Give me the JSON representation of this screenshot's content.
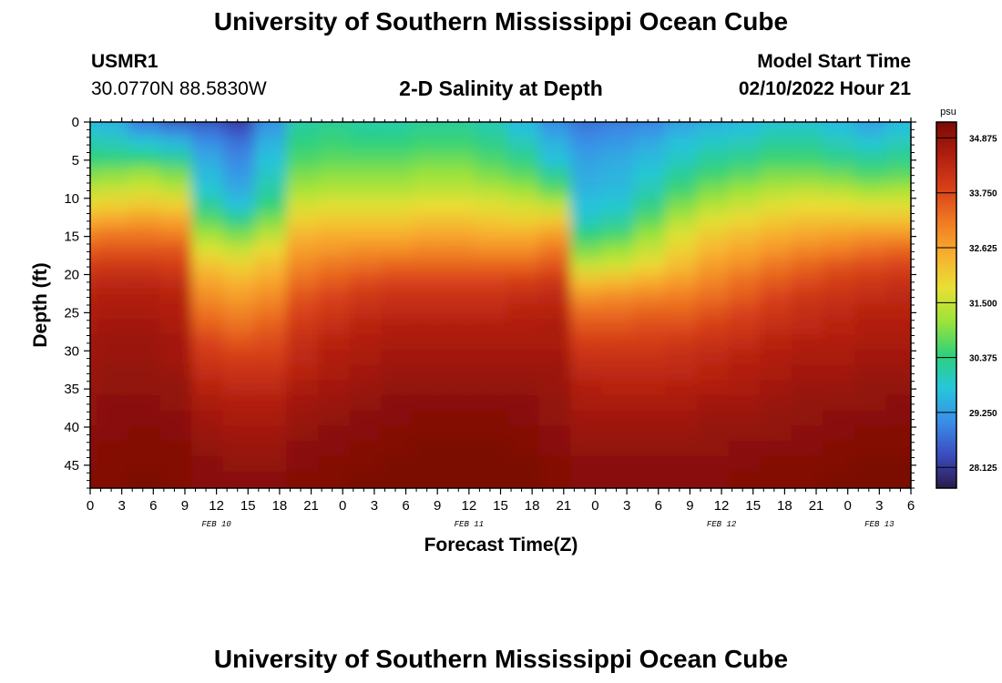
{
  "header": {
    "title": "University of Southern Mississippi Ocean Cube",
    "station_id": "USMR1",
    "station_coords": "30.0770N  88.5830W",
    "start_label": "Model Start Time",
    "start_value": "02/10/2022 Hour 21"
  },
  "footer": {
    "title": "University of Southern Mississippi Ocean Cube"
  },
  "chart_data": {
    "type": "heatmap",
    "title": "2-D Salinity at Depth",
    "xlabel": "Forecast Time(Z)",
    "ylabel": "Depth (ft)",
    "ylim": [
      0,
      48
    ],
    "y_ticks": [
      0,
      5,
      10,
      15,
      20,
      25,
      30,
      35,
      40,
      45
    ],
    "x_range_hours": [
      0,
      78
    ],
    "x_ticks_hours": [
      0,
      3,
      6,
      9,
      12,
      15,
      18,
      21,
      24,
      27,
      30,
      33,
      36,
      39,
      42,
      45,
      48,
      51,
      54,
      57,
      60,
      63,
      66,
      69,
      72,
      75,
      78
    ],
    "x_tick_labels": [
      "0",
      "3",
      "6",
      "9",
      "12",
      "15",
      "18",
      "21",
      "0",
      "3",
      "6",
      "9",
      "12",
      "15",
      "18",
      "21",
      "0",
      "3",
      "6",
      "9",
      "12",
      "15",
      "18",
      "21",
      "0",
      "3",
      "6"
    ],
    "date_labels": [
      {
        "label": "FEB 10",
        "hour": 12
      },
      {
        "label": "FEB 11",
        "hour": 36
      },
      {
        "label": "FEB 12",
        "hour": 60
      },
      {
        "label": "FEB 13",
        "hour": 75
      }
    ],
    "colorbar": {
      "unit": "psu",
      "min": 27.7,
      "max": 35.2,
      "ticks": [
        34.875,
        33.75,
        32.625,
        31.5,
        30.375,
        29.25,
        28.125
      ],
      "tick_labels": [
        "34.875",
        "33.750",
        "32.625",
        "31.500",
        "30.375",
        "29.250",
        "28.125"
      ],
      "colors": [
        "#2a1a4a",
        "#3b4cc0",
        "#3a8ee8",
        "#26c6da",
        "#2ed17a",
        "#9be33a",
        "#e8e035",
        "#f8b030",
        "#f07a22",
        "#d8401a",
        "#b01e0e",
        "#7a0a05"
      ]
    },
    "salinity_grid": {
      "hours": [
        0,
        3,
        6,
        9,
        12,
        15,
        18,
        21,
        24,
        27,
        30,
        33,
        36,
        39,
        42,
        45,
        48,
        51,
        54,
        57,
        60,
        63,
        66,
        69,
        72,
        75,
        78
      ],
      "depths": [
        0,
        2,
        4,
        6,
        8,
        10,
        12,
        14,
        16,
        18,
        20,
        22,
        24,
        26,
        28,
        30,
        32,
        34,
        36,
        38,
        40,
        42,
        44,
        46,
        48
      ],
      "values": [
        [
          29.5,
          29.4,
          28.6,
          28.0,
          28.2,
          28.0,
          29.0,
          30.0,
          30.1,
          30.0,
          30.0,
          30.1,
          30.1,
          29.9,
          29.4,
          28.9,
          28.6,
          28.7,
          28.8,
          29.1,
          29.3,
          29.4,
          29.6,
          29.6,
          29.4,
          29.1,
          29.4
        ],
        [
          29.8,
          29.6,
          29.1,
          28.9,
          28.7,
          28.4,
          29.2,
          30.2,
          30.3,
          30.2,
          30.2,
          30.3,
          30.3,
          30.1,
          29.7,
          29.2,
          28.9,
          29.0,
          29.1,
          29.4,
          29.6,
          29.7,
          29.9,
          29.9,
          29.7,
          29.4,
          29.7
        ],
        [
          30.1,
          30.0,
          29.8,
          29.6,
          29.1,
          28.8,
          29.5,
          30.4,
          30.5,
          30.4,
          30.4,
          30.5,
          30.5,
          30.3,
          30.0,
          29.5,
          29.1,
          29.2,
          29.4,
          29.7,
          29.9,
          30.0,
          30.2,
          30.2,
          30.0,
          29.8,
          30.0
        ],
        [
          30.4,
          30.4,
          30.4,
          30.2,
          29.4,
          29.0,
          29.7,
          30.6,
          30.7,
          30.7,
          30.7,
          30.8,
          30.8,
          30.6,
          30.3,
          29.7,
          29.3,
          29.4,
          29.6,
          29.9,
          30.2,
          30.3,
          30.5,
          30.5,
          30.3,
          30.2,
          30.3
        ],
        [
          30.9,
          31.0,
          31.1,
          30.9,
          29.6,
          29.2,
          29.9,
          30.9,
          31.0,
          31.0,
          31.0,
          31.1,
          31.1,
          30.9,
          30.7,
          30.2,
          29.4,
          29.5,
          29.8,
          30.2,
          30.5,
          30.7,
          30.9,
          30.9,
          30.8,
          30.6,
          30.7
        ],
        [
          31.4,
          31.5,
          31.6,
          31.4,
          29.8,
          29.4,
          30.1,
          31.2,
          31.3,
          31.3,
          31.3,
          31.4,
          31.4,
          31.3,
          31.1,
          30.7,
          29.5,
          29.6,
          30.0,
          30.5,
          30.9,
          31.1,
          31.3,
          31.4,
          31.3,
          31.1,
          31.2
        ],
        [
          31.9,
          32.0,
          32.1,
          32.0,
          30.2,
          29.7,
          30.4,
          31.6,
          31.7,
          31.7,
          31.7,
          31.8,
          31.8,
          31.7,
          31.6,
          31.4,
          29.7,
          29.8,
          30.3,
          30.9,
          31.3,
          31.5,
          31.7,
          31.8,
          31.8,
          31.7,
          31.7
        ],
        [
          32.5,
          32.6,
          32.7,
          32.6,
          30.7,
          30.3,
          30.9,
          32.0,
          32.1,
          32.1,
          32.1,
          32.2,
          32.2,
          32.1,
          32.0,
          32.1,
          29.9,
          30.1,
          30.7,
          31.3,
          31.7,
          31.9,
          32.1,
          32.2,
          32.2,
          32.2,
          32.2
        ],
        [
          33.0,
          33.2,
          33.2,
          33.1,
          31.2,
          30.9,
          31.4,
          32.4,
          32.5,
          32.5,
          32.5,
          32.6,
          32.6,
          32.5,
          32.5,
          32.7,
          30.4,
          30.6,
          31.1,
          31.7,
          32.1,
          32.3,
          32.5,
          32.6,
          32.7,
          32.8,
          32.8
        ],
        [
          33.5,
          33.6,
          33.6,
          33.6,
          31.7,
          31.5,
          31.9,
          32.7,
          32.8,
          32.9,
          32.9,
          33.0,
          33.0,
          32.9,
          32.9,
          33.2,
          30.9,
          31.1,
          31.5,
          32.0,
          32.4,
          32.6,
          32.8,
          33.0,
          33.1,
          33.3,
          33.4
        ],
        [
          33.9,
          34.0,
          34.0,
          33.9,
          32.2,
          32.0,
          32.3,
          33.0,
          33.2,
          33.3,
          33.4,
          33.4,
          33.4,
          33.4,
          33.4,
          33.6,
          31.5,
          31.6,
          31.9,
          32.3,
          32.7,
          32.9,
          33.2,
          33.4,
          33.6,
          33.7,
          33.8
        ],
        [
          34.2,
          34.3,
          34.3,
          34.2,
          32.6,
          32.4,
          32.6,
          33.3,
          33.5,
          33.7,
          33.8,
          33.8,
          33.8,
          33.8,
          33.9,
          34.0,
          32.2,
          32.3,
          32.5,
          32.7,
          33.0,
          33.3,
          33.5,
          33.7,
          33.9,
          34.0,
          34.1
        ],
        [
          34.4,
          34.5,
          34.5,
          34.4,
          32.9,
          32.7,
          32.9,
          33.6,
          33.8,
          34.0,
          34.1,
          34.1,
          34.1,
          34.1,
          34.2,
          34.3,
          32.8,
          32.9,
          33.0,
          33.1,
          33.3,
          33.5,
          33.8,
          34.0,
          34.1,
          34.2,
          34.3
        ],
        [
          34.5,
          34.6,
          34.6,
          34.5,
          33.2,
          33.0,
          33.2,
          33.8,
          34.0,
          34.2,
          34.3,
          34.3,
          34.3,
          34.3,
          34.4,
          34.4,
          33.3,
          33.3,
          33.4,
          33.4,
          33.6,
          33.8,
          34.0,
          34.2,
          34.3,
          34.4,
          34.4
        ],
        [
          34.6,
          34.7,
          34.7,
          34.6,
          33.5,
          33.3,
          33.5,
          34.0,
          34.2,
          34.4,
          34.5,
          34.5,
          34.5,
          34.5,
          34.5,
          34.6,
          33.6,
          33.6,
          33.7,
          33.7,
          33.9,
          34.0,
          34.2,
          34.3,
          34.4,
          34.5,
          34.5
        ],
        [
          34.7,
          34.8,
          34.8,
          34.7,
          33.8,
          33.6,
          33.7,
          34.2,
          34.4,
          34.5,
          34.6,
          34.6,
          34.6,
          34.6,
          34.6,
          34.6,
          33.9,
          33.9,
          33.9,
          34.0,
          34.1,
          34.2,
          34.4,
          34.5,
          34.5,
          34.6,
          34.6
        ],
        [
          34.7,
          34.8,
          34.8,
          34.7,
          34.0,
          33.9,
          33.9,
          34.3,
          34.5,
          34.6,
          34.7,
          34.7,
          34.7,
          34.7,
          34.7,
          34.7,
          34.1,
          34.1,
          34.1,
          34.2,
          34.3,
          34.4,
          34.5,
          34.6,
          34.6,
          34.7,
          34.7
        ],
        [
          34.8,
          34.9,
          34.9,
          34.8,
          34.2,
          34.1,
          34.1,
          34.4,
          34.6,
          34.7,
          34.8,
          34.8,
          34.8,
          34.8,
          34.8,
          34.8,
          34.3,
          34.3,
          34.3,
          34.3,
          34.4,
          34.5,
          34.6,
          34.7,
          34.7,
          34.8,
          34.8
        ],
        [
          34.8,
          34.9,
          34.9,
          34.9,
          34.4,
          34.3,
          34.3,
          34.6,
          34.7,
          34.8,
          34.9,
          34.9,
          34.9,
          34.9,
          34.9,
          34.8,
          34.5,
          34.4,
          34.4,
          34.5,
          34.5,
          34.6,
          34.7,
          34.8,
          34.8,
          34.9,
          34.9
        ],
        [
          34.9,
          35.0,
          35.0,
          34.9,
          34.6,
          34.5,
          34.5,
          34.7,
          34.8,
          34.9,
          35.0,
          35.0,
          35.0,
          35.0,
          35.0,
          34.9,
          34.6,
          34.6,
          34.6,
          34.6,
          34.7,
          34.7,
          34.8,
          34.9,
          34.9,
          34.9,
          35.0
        ],
        [
          34.9,
          35.0,
          35.0,
          35.0,
          34.7,
          34.6,
          34.6,
          34.8,
          34.9,
          35.0,
          35.0,
          35.1,
          35.1,
          35.1,
          35.0,
          34.9,
          34.7,
          34.7,
          34.7,
          34.7,
          34.8,
          34.8,
          34.9,
          34.9,
          35.0,
          35.0,
          35.0
        ],
        [
          35.0,
          35.0,
          35.1,
          35.0,
          34.8,
          34.7,
          34.7,
          34.9,
          35.0,
          35.0,
          35.1,
          35.1,
          35.1,
          35.1,
          35.1,
          35.0,
          34.8,
          34.8,
          34.8,
          34.8,
          34.9,
          34.9,
          34.9,
          35.0,
          35.0,
          35.1,
          35.1
        ],
        [
          35.0,
          35.1,
          35.1,
          35.1,
          34.9,
          34.8,
          34.8,
          35.0,
          35.0,
          35.1,
          35.1,
          35.2,
          35.2,
          35.2,
          35.1,
          35.0,
          34.9,
          34.9,
          34.9,
          34.9,
          34.9,
          35.0,
          35.0,
          35.0,
          35.1,
          35.1,
          35.1
        ],
        [
          35.0,
          35.1,
          35.1,
          35.1,
          35.0,
          34.9,
          34.9,
          35.0,
          35.1,
          35.1,
          35.2,
          35.2,
          35.2,
          35.2,
          35.2,
          35.1,
          35.0,
          35.0,
          35.0,
          35.0,
          35.0,
          35.0,
          35.1,
          35.1,
          35.1,
          35.2,
          35.2
        ],
        [
          35.1,
          35.1,
          35.2,
          35.1,
          35.0,
          35.0,
          35.0,
          35.1,
          35.1,
          35.2,
          35.2,
          35.2,
          35.2,
          35.2,
          35.2,
          35.1,
          35.0,
          35.0,
          35.0,
          35.0,
          35.0,
          35.1,
          35.1,
          35.1,
          35.2,
          35.2,
          35.2
        ]
      ]
    }
  }
}
